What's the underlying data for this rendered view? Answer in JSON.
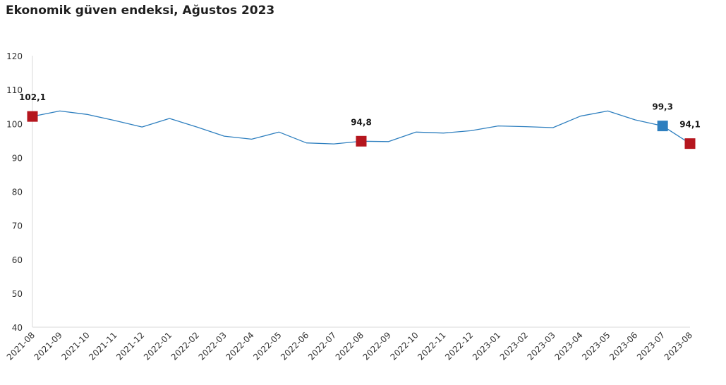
{
  "title": "Ekonomik güven endeksi, Ağustos 2023",
  "chart_data": {
    "type": "line",
    "title": "Ekonomik güven endeksi, Ağustos 2023",
    "xlabel": "",
    "ylabel": "",
    "ylim": [
      40,
      120
    ],
    "yticks": [
      40,
      50,
      60,
      70,
      80,
      90,
      100,
      110,
      120
    ],
    "grid": false,
    "categories": [
      "2021-08",
      "2021-09",
      "2021-10",
      "2021-11",
      "2021-12",
      "2022-01",
      "2022-02",
      "2022-03",
      "2022-04",
      "2022-05",
      "2022-06",
      "2022-07",
      "2022-08",
      "2022-09",
      "2022-10",
      "2022-11",
      "2022-12",
      "2023-01",
      "2023-02",
      "2023-03",
      "2023-04",
      "2023-05",
      "2023-06",
      "2023-07",
      "2023-08"
    ],
    "series": [
      {
        "values": [
          102.1,
          103.7,
          102.7,
          100.9,
          99.0,
          101.5,
          99.0,
          96.3,
          95.4,
          97.5,
          94.3,
          94.0,
          94.8,
          94.7,
          97.5,
          97.2,
          97.9,
          99.3,
          99.1,
          98.8,
          102.2,
          103.7,
          101.1,
          99.3,
          94.1
        ],
        "color": "#2e7fbf"
      }
    ],
    "highlights": [
      {
        "index": 0,
        "label": "102,1",
        "color": "#b5161e"
      },
      {
        "index": 12,
        "label": "94,8",
        "color": "#b5161e"
      },
      {
        "index": 23,
        "label": "99,3",
        "color": "#2e7fbf"
      },
      {
        "index": 24,
        "label": "94,1",
        "color": "#b5161e"
      }
    ]
  }
}
